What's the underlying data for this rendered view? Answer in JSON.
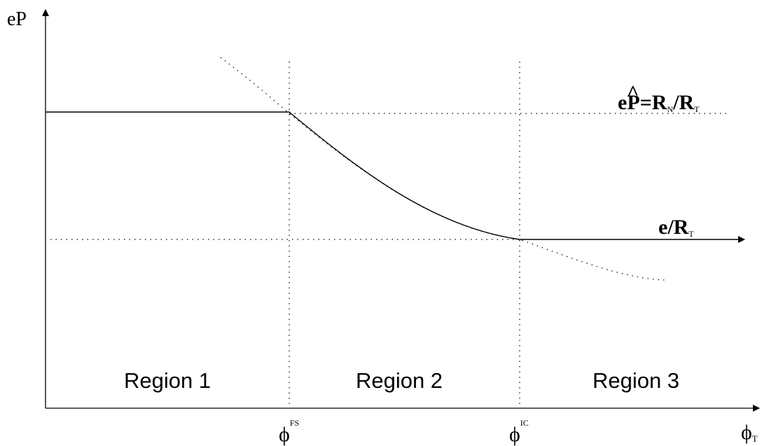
{
  "y_axis": {
    "label": "eP"
  },
  "x_axis": {
    "label_main": "ϕ",
    "label_sub": "T"
  },
  "ticks": {
    "fs": {
      "main": "ϕ",
      "sup": "FS"
    },
    "ic": {
      "main": "ϕ",
      "sup": "IC"
    }
  },
  "curve_labels": {
    "upper": {
      "e": "e",
      "p_hat": "P",
      "hat": "^",
      "equals": "=",
      "r1": "R",
      "r1_sub": "N",
      "slash": "/",
      "r2": "R",
      "r2_sub": "T"
    },
    "lower": {
      "e_slash": "e/",
      "r": "R",
      "r_sub": "T"
    }
  },
  "regions": [
    {
      "label": "Region 1"
    },
    {
      "label": "Region 2"
    },
    {
      "label": "Region 3"
    }
  ],
  "colors": {
    "line": "#000000",
    "background": "#ffffff"
  }
}
